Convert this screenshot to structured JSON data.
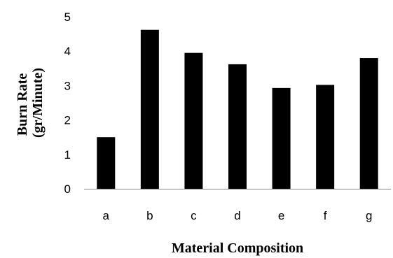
{
  "chart_data": {
    "type": "bar",
    "categories": [
      "a",
      "b",
      "c",
      "d",
      "e",
      "f",
      "g"
    ],
    "values": [
      1.5,
      4.62,
      3.95,
      3.62,
      2.93,
      3.02,
      3.8
    ],
    "title": "",
    "xlabel": "Material Composition",
    "ylabel_lines": [
      "Burn Rate",
      "(gr/Minute)"
    ],
    "ylim": [
      0,
      5
    ],
    "yticks": [
      0,
      1,
      2,
      3,
      4,
      5
    ],
    "grid": false,
    "legend": "none",
    "bar_color": "#000000",
    "axis_color": "#868686"
  }
}
